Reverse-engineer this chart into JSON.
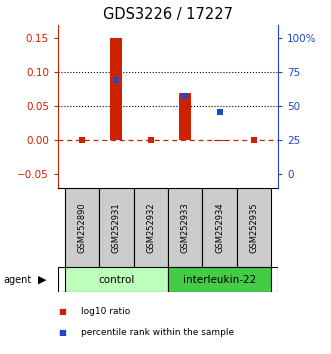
{
  "title": "GDS3226 / 17227",
  "samples": [
    "GSM252890",
    "GSM252931",
    "GSM252932",
    "GSM252933",
    "GSM252934",
    "GSM252935"
  ],
  "log10_ratio": [
    0.0,
    0.15,
    0.0,
    0.07,
    -0.002,
    0.0
  ],
  "percentile_rank_left": [
    null,
    0.088,
    null,
    0.065,
    0.042,
    null
  ],
  "groups": [
    {
      "label": "control",
      "indices": [
        0,
        1,
        2
      ],
      "color": "#bbffbb"
    },
    {
      "label": "interleukin-22",
      "indices": [
        3,
        4,
        5
      ],
      "color": "#44cc44"
    }
  ],
  "ylim_left": [
    -0.07,
    0.17
  ],
  "yticks_left": [
    -0.05,
    0.0,
    0.05,
    0.1,
    0.15
  ],
  "yticks_right": [
    0,
    25,
    50,
    75,
    100
  ],
  "log10_color": "#cc2200",
  "percentile_color": "#2244cc",
  "zero_line_color": "#cc2200",
  "dotted_line_color": "#000000",
  "bar_width": 0.35
}
